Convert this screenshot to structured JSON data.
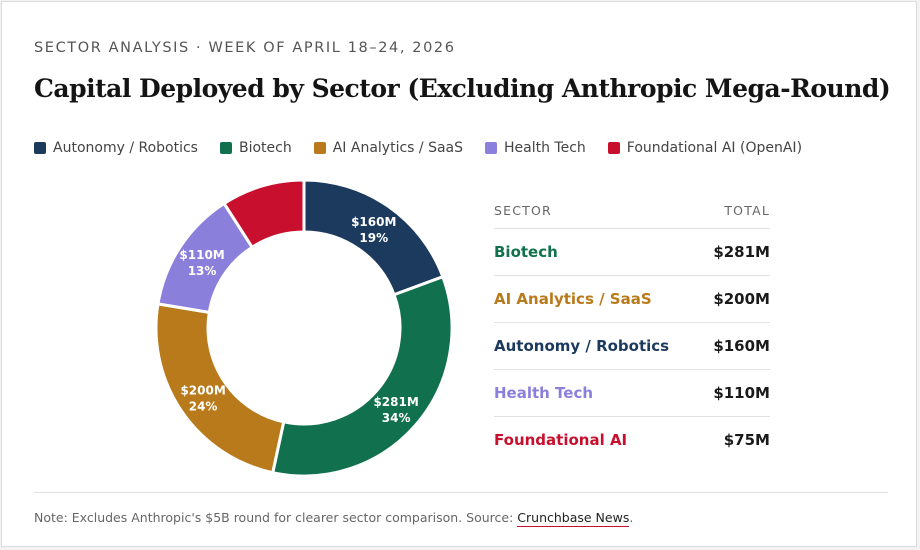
{
  "header": {
    "eyebrow": "SECTOR ANALYSIS · WEEK OF APRIL 18–24, 2026",
    "title": "Capital Deployed by Sector (Excluding Anthropic Mega-Round)"
  },
  "legend": [
    {
      "label": "Autonomy / Robotics",
      "color": "#1c3a5e"
    },
    {
      "label": "Biotech",
      "color": "#11714f"
    },
    {
      "label": "AI Analytics / SaaS",
      "color": "#b87a1a"
    },
    {
      "label": "Health Tech",
      "color": "#8b7fdc"
    },
    {
      "label": "Foundational AI (OpenAI)",
      "color": "#c8102e"
    }
  ],
  "chart_data": {
    "type": "pie",
    "style": "donut",
    "slices": [
      {
        "name": "Autonomy / Robotics",
        "value": 160,
        "value_label": "$160M",
        "pct_label": "19%",
        "color": "#1c3a5e"
      },
      {
        "name": "Biotech",
        "value": 281,
        "value_label": "$281M",
        "pct_label": "34%",
        "color": "#11714f"
      },
      {
        "name": "AI Analytics / SaaS",
        "value": 200,
        "value_label": "$200M",
        "pct_label": "24%",
        "color": "#b87a1a"
      },
      {
        "name": "Health Tech",
        "value": 110,
        "value_label": "$110M",
        "pct_label": "13%",
        "color": "#8b7fdc"
      },
      {
        "name": "Foundational AI (OpenAI)",
        "value": 75,
        "value_label": "",
        "pct_label": "",
        "color": "#c8102e"
      }
    ],
    "legend_position": "top"
  },
  "table": {
    "headers": {
      "sector": "SECTOR",
      "total": "TOTAL"
    },
    "rows": [
      {
        "sector": "Biotech",
        "total": "$281M",
        "color": "#11714f"
      },
      {
        "sector": "AI Analytics / SaaS",
        "total": "$200M",
        "color": "#b87a1a"
      },
      {
        "sector": "Autonomy / Robotics",
        "total": "$160M",
        "color": "#1c3a5e"
      },
      {
        "sector": "Health Tech",
        "total": "$110M",
        "color": "#8b7fdc"
      },
      {
        "sector": "Foundational AI",
        "total": "$75M",
        "color": "#c8102e"
      }
    ]
  },
  "footer": {
    "note": "Note: Excludes Anthropic's $5B round for clearer sector comparison. Source: ",
    "source_link": "Crunchbase News",
    "trailing": "."
  }
}
